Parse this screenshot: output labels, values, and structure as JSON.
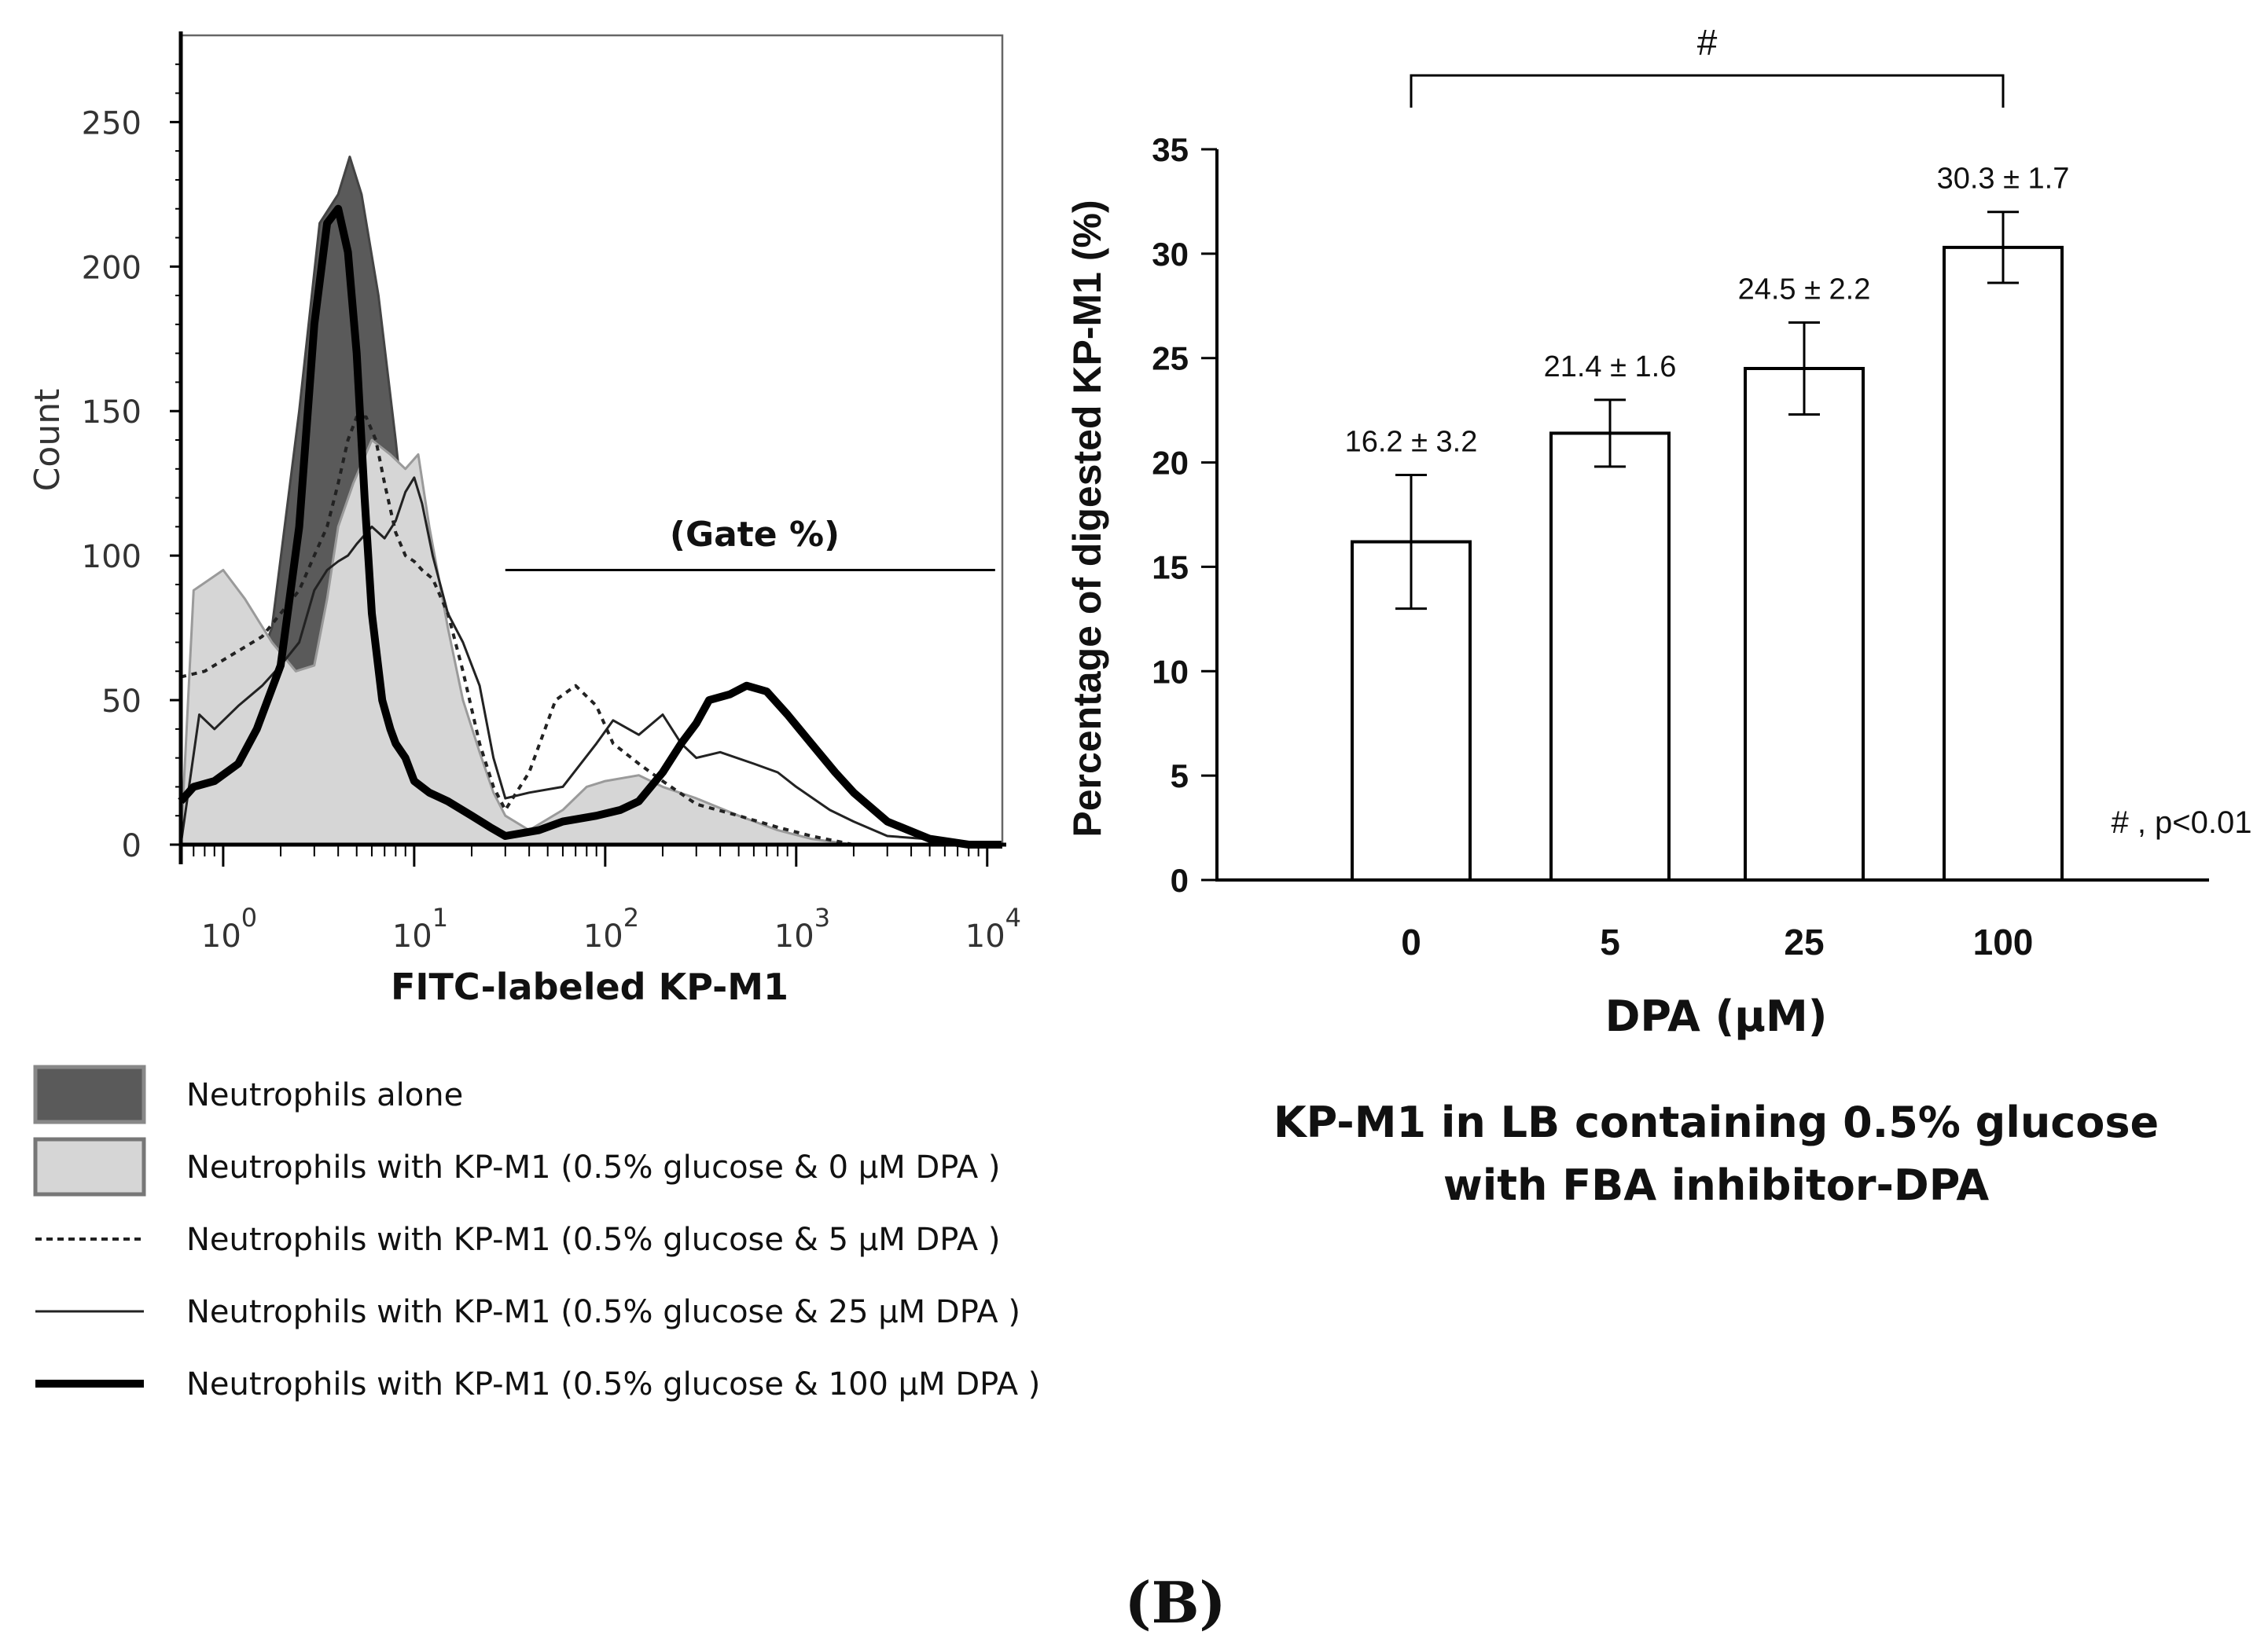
{
  "panel_label": "(B)",
  "chart_data": [
    {
      "type": "histogram-overlay",
      "xlabel": "FITC-labeled KP-M1",
      "ylabel": "Count",
      "xscale": "log",
      "xlim": [
        0.6,
        12000
      ],
      "ylim": [
        0,
        280
      ],
      "yticks": [
        0,
        50,
        100,
        150,
        200,
        250
      ],
      "xticks": [
        {
          "value": 1,
          "base": "10",
          "exp": "0"
        },
        {
          "value": 10,
          "base": "10",
          "exp": "1"
        },
        {
          "value": 100,
          "base": "10",
          "exp": "2"
        },
        {
          "value": 1000,
          "base": "10",
          "exp": "3"
        },
        {
          "value": 10000,
          "base": "10",
          "exp": "4"
        }
      ],
      "gate": {
        "label": "(Gate %)",
        "from": 30,
        "to": 11000,
        "y": 95
      },
      "series": [
        {
          "name": "Neutrophils alone",
          "style": "filled-dark",
          "color": "#5a5a5a",
          "x": [
            0.6,
            0.8,
            1.2,
            1.8,
            2.5,
            3.2,
            4.0,
            4.6,
            5.3,
            6.5,
            8.0,
            10,
            13,
            18,
            25,
            35,
            60,
            100,
            1000,
            12000
          ],
          "y": [
            0,
            28,
            45,
            75,
            150,
            215,
            225,
            238,
            225,
            190,
            140,
            80,
            30,
            8,
            2,
            1,
            0,
            0,
            0,
            0
          ]
        },
        {
          "name": "Neutrophils with KP-M1 (0.5% glucose & 0 μM DPA )",
          "style": "filled-light",
          "color": "#d6d6d6",
          "x": [
            0.6,
            0.7,
            1.0,
            1.3,
            1.8,
            2.4,
            3.0,
            3.5,
            4.0,
            4.8,
            6.0,
            7.5,
            9.0,
            10.5,
            12,
            15,
            18,
            22,
            26,
            30,
            40,
            60,
            80,
            100,
            150,
            200,
            300,
            500,
            800,
            1200,
            2000,
            12000
          ],
          "y": [
            0,
            88,
            95,
            85,
            70,
            60,
            62,
            85,
            110,
            125,
            140,
            135,
            130,
            135,
            110,
            75,
            50,
            32,
            18,
            10,
            5,
            12,
            20,
            22,
            24,
            20,
            16,
            10,
            5,
            2,
            0,
            0
          ]
        },
        {
          "name": "Neutrophils with KP-M1 (0.5% glucose & 5 μM DPA )",
          "style": "dashed",
          "color": "#222222",
          "x": [
            0.6,
            0.8,
            1.2,
            1.6,
            2.0,
            2.5,
            3.0,
            3.5,
            4.0,
            4.5,
            5.0,
            5.6,
            6.3,
            7.0,
            8.0,
            9.0,
            10,
            11,
            12.5,
            15,
            18,
            22,
            26,
            30,
            40,
            55,
            70,
            90,
            110,
            150,
            200,
            300,
            500,
            800,
            1200,
            2000,
            12000
          ],
          "y": [
            58,
            60,
            67,
            72,
            80,
            88,
            100,
            110,
            125,
            140,
            148,
            148,
            140,
            125,
            108,
            100,
            98,
            95,
            92,
            80,
            60,
            35,
            20,
            12,
            25,
            50,
            55,
            48,
            35,
            28,
            22,
            14,
            10,
            6,
            3,
            0,
            0
          ]
        },
        {
          "name": "Neutrophils with KP-M1 (0.5% glucose & 25 μM DPA )",
          "style": "thin",
          "color": "#222222",
          "x": [
            0.6,
            0.75,
            0.9,
            1.2,
            1.6,
            2.0,
            2.5,
            3.0,
            3.5,
            4.0,
            4.5,
            5.0,
            6.0,
            7.0,
            8.0,
            9.0,
            10,
            11,
            12.5,
            15,
            18,
            22,
            26,
            30,
            40,
            60,
            90,
            110,
            150,
            200,
            250,
            300,
            400,
            600,
            800,
            1000,
            1500,
            2000,
            3000,
            12000
          ],
          "y": [
            0,
            45,
            40,
            48,
            55,
            62,
            70,
            88,
            95,
            98,
            100,
            104,
            110,
            106,
            112,
            122,
            127,
            118,
            100,
            80,
            70,
            55,
            30,
            16,
            18,
            20,
            35,
            43,
            38,
            45,
            35,
            30,
            32,
            28,
            25,
            20,
            12,
            8,
            3,
            0
          ]
        },
        {
          "name": "Neutrophils with KP-M1 (0.5% glucose & 100 μM DPA )",
          "style": "thick",
          "color": "#000000",
          "x": [
            0.6,
            0.7,
            0.9,
            1.2,
            1.5,
            2.0,
            2.5,
            3.0,
            3.5,
            4.0,
            4.5,
            5.0,
            5.5,
            6.0,
            6.8,
            7.5,
            8.0,
            9.0,
            10,
            12,
            15,
            20,
            25,
            30,
            45,
            60,
            90,
            120,
            150,
            200,
            250,
            300,
            350,
            450,
            550,
            700,
            900,
            1200,
            1600,
            2000,
            3000,
            5000,
            8000,
            12000
          ],
          "y": [
            15,
            20,
            22,
            28,
            40,
            62,
            110,
            180,
            215,
            220,
            205,
            170,
            120,
            80,
            50,
            40,
            35,
            30,
            22,
            18,
            15,
            10,
            6,
            3,
            5,
            8,
            10,
            12,
            15,
            25,
            35,
            42,
            50,
            52,
            55,
            53,
            45,
            35,
            25,
            18,
            8,
            2,
            0,
            0
          ]
        }
      ]
    },
    {
      "type": "bar",
      "title": "KP-M1 in LB containing 0.5% glucose with FBA inhibitor-DPA",
      "title_lines": [
        "KP-M1 in LB containing 0.5% glucose",
        "with FBA inhibitor-DPA"
      ],
      "xlabel": "DPA (μM)",
      "ylabel": "Percentage of digested KP-M1 (%)",
      "ylim": [
        0,
        35
      ],
      "yticks": [
        0,
        5,
        10,
        15,
        20,
        25,
        30,
        35
      ],
      "categories": [
        "0",
        "5",
        "25",
        "100"
      ],
      "values": [
        16.2,
        21.4,
        24.5,
        30.3
      ],
      "errors": [
        3.2,
        1.6,
        2.2,
        1.7
      ],
      "value_labels": [
        "16.2 ± 3.2",
        "21.4 ± 1.6",
        "24.5 ± 2.2",
        "30.3 ± 1.7"
      ],
      "significance": {
        "symbol": "#",
        "from": "0",
        "to": "100",
        "note": "# , p<0.01"
      }
    }
  ],
  "legend": [
    {
      "style": "filled-dark",
      "label": "Neutrophils alone"
    },
    {
      "style": "filled-light",
      "label": "Neutrophils with KP-M1 (0.5% glucose & 0 μM DPA )"
    },
    {
      "style": "dashed",
      "label": "Neutrophils with KP-M1 (0.5% glucose & 5 μM DPA )"
    },
    {
      "style": "thin",
      "label": "Neutrophils with KP-M1 (0.5% glucose & 25 μM DPA )"
    },
    {
      "style": "thick",
      "label": "Neutrophils with KP-M1 (0.5% glucose & 100 μM DPA )"
    }
  ]
}
